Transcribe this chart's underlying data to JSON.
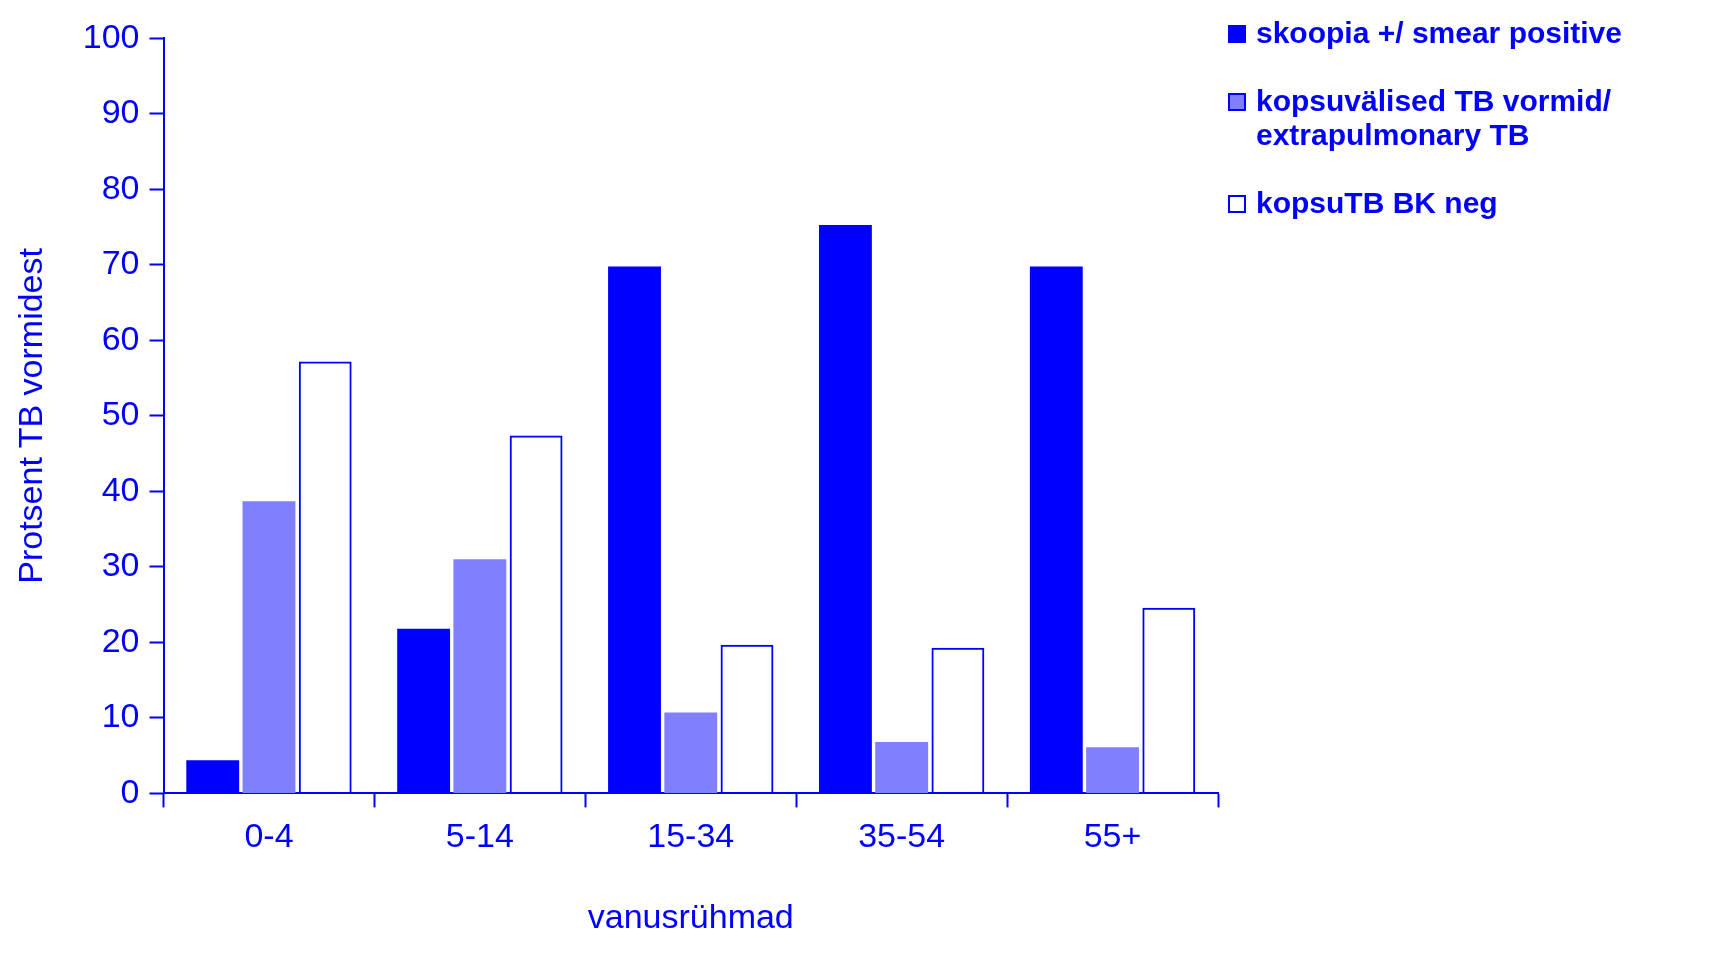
{
  "chart_data": {
    "type": "bar",
    "xlabel": "vanusrühmad",
    "ylabel": "Protsent TB vormidest",
    "categories": [
      "0-4",
      "5-14",
      "15-34",
      "35-54",
      "55+"
    ],
    "series": [
      {
        "name": "skoopia +/ smear positive",
        "color": "#0000ff",
        "values": [
          4.4,
          21.8,
          69.8,
          75.3,
          69.8
        ]
      },
      {
        "name": "kopsuvälised TB vormid/ extrapulmonary TB",
        "color": "#8080ff",
        "values": [
          38.7,
          31.0,
          10.7,
          6.8,
          6.1
        ]
      },
      {
        "name": "kopsuTB BK neg",
        "color": "#0000ff",
        "values": [
          57.2,
          47.4,
          19.7,
          19.3,
          24.6
        ]
      }
    ],
    "ylim": [
      0,
      100
    ],
    "yticks": [
      0,
      10,
      20,
      30,
      40,
      50,
      60,
      70,
      80,
      90,
      100
    ],
    "grid": false,
    "legend": "top right"
  }
}
